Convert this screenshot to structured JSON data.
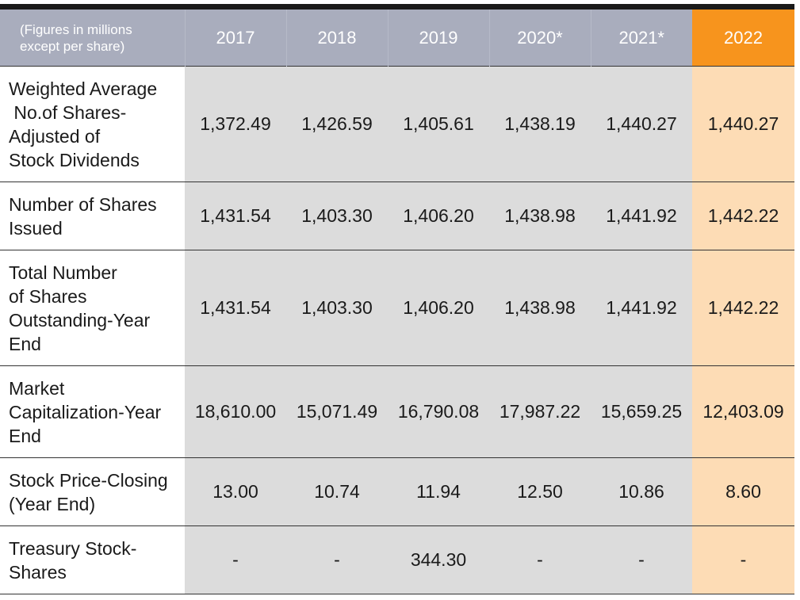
{
  "header": {
    "note_lines": [
      "(Figures in millions",
      "except per share)"
    ],
    "years": [
      "2017",
      "2018",
      "2019",
      "2020*",
      "2021*",
      "2022"
    ],
    "highlight_color": "#f7941d",
    "header_color": "#a9adbd"
  },
  "rows": [
    {
      "label_lines": [
        "Weighted Average",
        " No.of Shares-",
        "Adjusted of",
        "Stock Dividends"
      ],
      "values": [
        "1,372.49",
        "1,426.59",
        "1,405.61",
        "1,438.19",
        "1,440.27",
        "1,440.27"
      ]
    },
    {
      "label_lines": [
        "Number of Shares",
        "Issued"
      ],
      "values": [
        "1,431.54",
        "1,403.30",
        "1,406.20",
        "1,438.98",
        "1,441.92",
        "1,442.22"
      ]
    },
    {
      "label_lines": [
        "Total Number",
        "of Shares",
        "Outstanding-Year",
        "End"
      ],
      "values": [
        "1,431.54",
        "1,403.30",
        "1,406.20",
        "1,438.98",
        "1,441.92",
        "1,442.22"
      ]
    },
    {
      "label_lines": [
        "Market",
        "Capitalization-Year",
        "End"
      ],
      "values": [
        "18,610.00",
        "15,071.49",
        "16,790.08",
        "17,987.22",
        "15,659.25",
        "12,403.09"
      ]
    },
    {
      "label_lines": [
        "Stock Price-Closing",
        "(Year End)"
      ],
      "values": [
        "13.00",
        "10.74",
        "11.94",
        "12.50",
        "10.86",
        "8.60"
      ]
    },
    {
      "label_lines": [
        "Treasury Stock-",
        "Shares"
      ],
      "values": [
        "-",
        "-",
        "344.30",
        "-",
        "-",
        "-"
      ]
    }
  ]
}
